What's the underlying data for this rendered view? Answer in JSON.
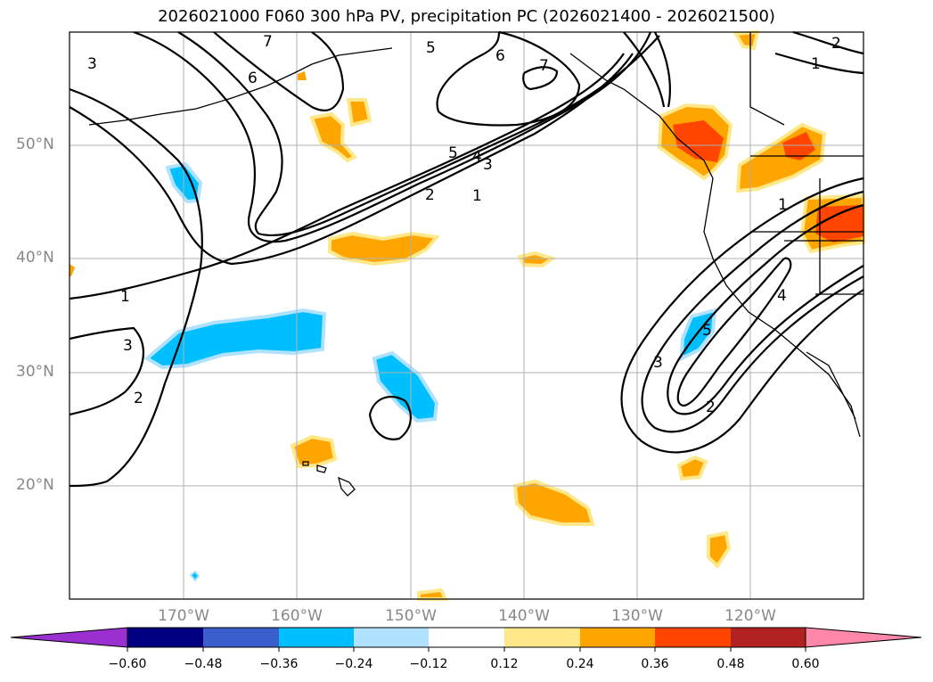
{
  "title": "2026021000 F060 300 hPa PV, precipitation PC (2026021400 - 2026021500)",
  "map": {
    "lat_labels": [
      "50°N",
      "40°N",
      "30°N",
      "20°N"
    ],
    "lon_labels": [
      "170°W",
      "160°W",
      "150°W",
      "140°W",
      "130°W",
      "120°W"
    ],
    "contour_labels": [
      "7",
      "6",
      "5",
      "4",
      "3",
      "2",
      "1"
    ]
  },
  "colorbar": {
    "ticks": [
      "−0.60",
      "−0.48",
      "−0.36",
      "−0.24",
      "−0.12",
      "0.12",
      "0.24",
      "0.36",
      "0.48",
      "0.60"
    ],
    "colors": [
      "#9b30d0",
      "#000080",
      "#3a5fcd",
      "#00bfff",
      "#b0e2ff",
      "#ffffff",
      "#ffe88a",
      "#ffa500",
      "#ff4500",
      "#b22222",
      "#ff88aa"
    ]
  }
}
